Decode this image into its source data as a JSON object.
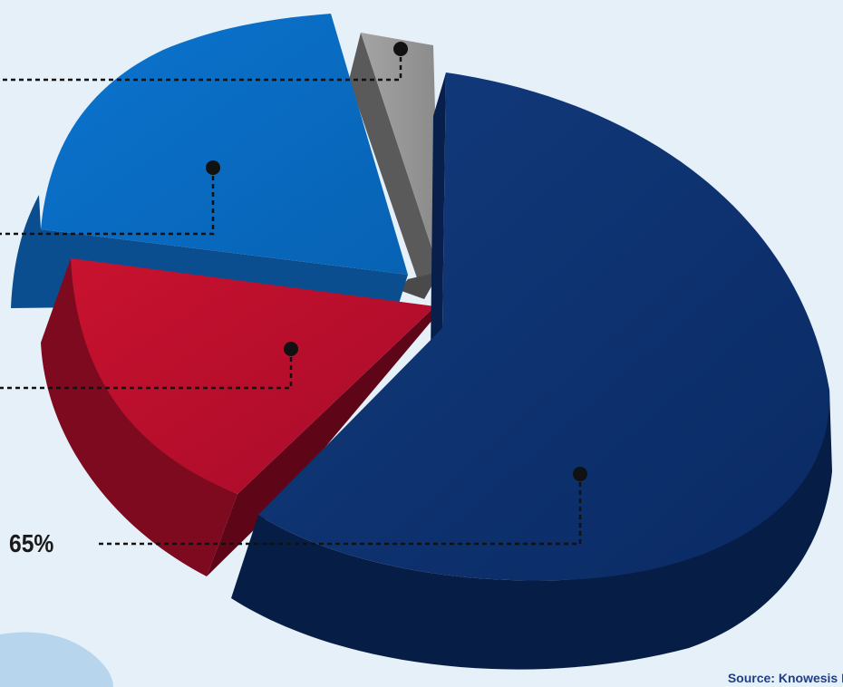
{
  "chart_data": {
    "type": "pie",
    "style": "3d-exploded",
    "slices": [
      {
        "key": "navy",
        "value": 65,
        "label": "65%",
        "color": "#0b2f6b"
      },
      {
        "key": "red",
        "value": 14,
        "label": "",
        "color": "#b80d2f"
      },
      {
        "key": "blue",
        "value": 18,
        "label": "",
        "color": "#0a6cc2"
      },
      {
        "key": "gray",
        "value": 3,
        "label": "",
        "color": "#8e8e8e"
      }
    ],
    "legend": "none",
    "title": ""
  },
  "source": "Source: Knowesis I",
  "colors": {
    "background": "#e6f0f9",
    "leader_line": "#111111",
    "source_text": "#1f3f82"
  }
}
